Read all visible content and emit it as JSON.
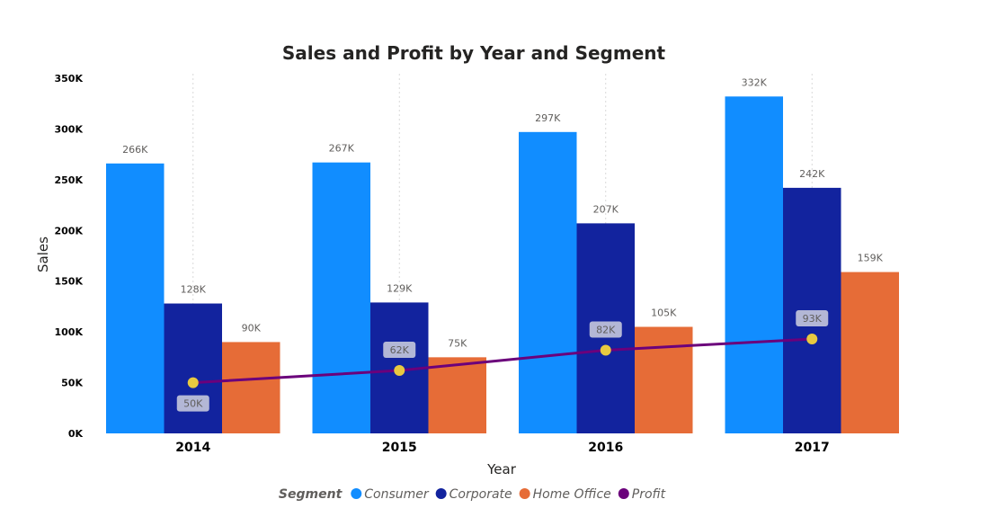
{
  "chart_data": {
    "type": "bar",
    "title": "Sales and Profit by Year and Segment",
    "xlabel": "Year",
    "ylabel": "Sales",
    "categories": [
      "2014",
      "2015",
      "2016",
      "2017"
    ],
    "ylim": [
      0,
      350000
    ],
    "yticks": [
      {
        "value": 0,
        "label": "0K"
      },
      {
        "value": 50000,
        "label": "50K"
      },
      {
        "value": 100000,
        "label": "100K"
      },
      {
        "value": 150000,
        "label": "150K"
      },
      {
        "value": 200000,
        "label": "200K"
      },
      {
        "value": 250000,
        "label": "250K"
      },
      {
        "value": 300000,
        "label": "300K"
      },
      {
        "value": 350000,
        "label": "350K"
      }
    ],
    "series": [
      {
        "name": "Consumer",
        "color": "#118dff",
        "values": [
          266000,
          267000,
          297000,
          332000
        ],
        "labels": [
          "266K",
          "267K",
          "297K",
          "332K"
        ]
      },
      {
        "name": "Corporate",
        "color": "#12239e",
        "values": [
          128000,
          129000,
          207000,
          242000
        ],
        "labels": [
          "128K",
          "129K",
          "207K",
          "242K"
        ]
      },
      {
        "name": "Home Office",
        "color": "#e66c37",
        "values": [
          90000,
          75000,
          105000,
          159000
        ],
        "labels": [
          "90K",
          "75K",
          "105K",
          "159K"
        ]
      }
    ],
    "line_series": {
      "name": "Profit",
      "color": "#6b007b",
      "marker_color": "#e8c940",
      "values": [
        50000,
        62000,
        82000,
        93000
      ],
      "labels": [
        "50K",
        "62K",
        "82K",
        "93K"
      ]
    },
    "legend": {
      "title": "Segment",
      "position": "bottom-center",
      "items": [
        {
          "name": "Consumer",
          "color": "#118dff"
        },
        {
          "name": "Corporate",
          "color": "#12239e"
        },
        {
          "name": "Home Office",
          "color": "#e66c37"
        },
        {
          "name": "Profit",
          "color": "#6b007b"
        }
      ]
    },
    "grid": false
  }
}
